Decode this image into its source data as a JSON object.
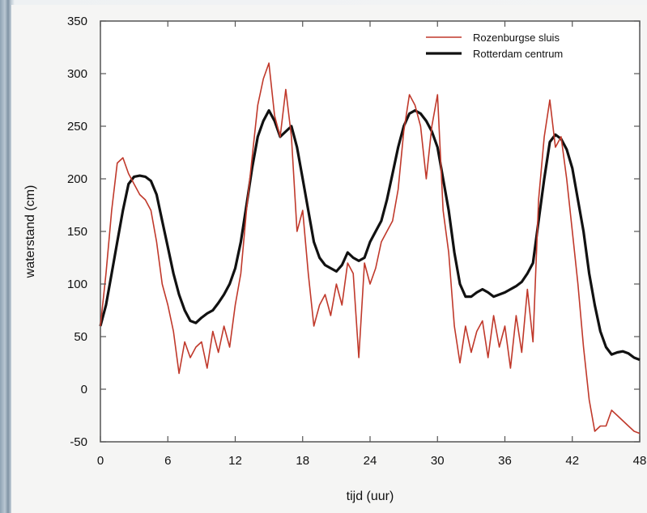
{
  "chart_data": {
    "type": "line",
    "title": "",
    "xlabel": "tijd (uur)",
    "ylabel": "waterstand (cm)",
    "xlim": [
      0,
      48
    ],
    "ylim": [
      -50,
      350
    ],
    "xticks": [
      0,
      6,
      12,
      18,
      24,
      30,
      36,
      42,
      48
    ],
    "yticks": [
      -50,
      0,
      50,
      100,
      150,
      200,
      250,
      300,
      350
    ],
    "grid": false,
    "legend_position": "top-right",
    "series": [
      {
        "name": "Rozenburgse sluis",
        "color": "#c0392b",
        "x": [
          0,
          0.5,
          1,
          1.5,
          2,
          2.5,
          3,
          3.5,
          4,
          4.5,
          5,
          5.5,
          6,
          6.5,
          7,
          7.5,
          8,
          8.5,
          9,
          9.5,
          10,
          10.5,
          11,
          11.5,
          12,
          12.5,
          13,
          13.5,
          14,
          14.5,
          15,
          15.5,
          16,
          16.5,
          17,
          17.5,
          18,
          18.5,
          19,
          19.5,
          20,
          20.5,
          21,
          21.5,
          22,
          22.5,
          23,
          23.5,
          24,
          24.5,
          25,
          25.5,
          26,
          26.5,
          27,
          27.5,
          28,
          28.5,
          29,
          29.5,
          30,
          30.5,
          31,
          31.5,
          32,
          32.5,
          33,
          33.5,
          34,
          34.5,
          35,
          35.5,
          36,
          36.5,
          37,
          37.5,
          38,
          38.5,
          39,
          39.5,
          40,
          40.5,
          41,
          41.5,
          42,
          42.5,
          43,
          43.5,
          44,
          44.5,
          45,
          45.5,
          46,
          46.5,
          47,
          47.5,
          48
        ],
        "values": [
          60,
          110,
          170,
          215,
          220,
          205,
          195,
          185,
          180,
          170,
          140,
          100,
          80,
          55,
          15,
          45,
          30,
          40,
          45,
          20,
          55,
          35,
          60,
          40,
          80,
          110,
          170,
          220,
          270,
          295,
          310,
          260,
          240,
          285,
          240,
          150,
          170,
          110,
          60,
          80,
          90,
          70,
          100,
          80,
          120,
          110,
          30,
          120,
          100,
          115,
          140,
          150,
          160,
          190,
          245,
          280,
          270,
          250,
          200,
          250,
          280,
          170,
          130,
          60,
          25,
          60,
          35,
          55,
          65,
          30,
          70,
          40,
          60,
          20,
          70,
          35,
          95,
          45,
          180,
          240,
          275,
          230,
          240,
          200,
          150,
          100,
          40,
          -10,
          -40,
          -35,
          -35,
          -20,
          -25,
          -30,
          -35,
          -40,
          -42
        ]
      },
      {
        "name": "Rotterdam centrum",
        "color": "#111111",
        "x": [
          0,
          0.5,
          1,
          1.5,
          2,
          2.5,
          3,
          3.5,
          4,
          4.5,
          5,
          5.5,
          6,
          6.5,
          7,
          7.5,
          8,
          8.5,
          9,
          9.5,
          10,
          10.5,
          11,
          11.5,
          12,
          12.5,
          13,
          13.5,
          14,
          14.5,
          15,
          15.5,
          16,
          16.5,
          17,
          17.5,
          18,
          18.5,
          19,
          19.5,
          20,
          20.5,
          21,
          21.5,
          22,
          22.5,
          23,
          23.5,
          24,
          24.5,
          25,
          25.5,
          26,
          26.5,
          27,
          27.5,
          28,
          28.5,
          29,
          29.5,
          30,
          30.5,
          31,
          31.5,
          32,
          32.5,
          33,
          33.5,
          34,
          34.5,
          35,
          35.5,
          36,
          36.5,
          37,
          37.5,
          38,
          38.5,
          39,
          39.5,
          40,
          40.5,
          41,
          41.5,
          42,
          42.5,
          43,
          43.5,
          44,
          44.5,
          45,
          45.5,
          46,
          46.5,
          47,
          47.5,
          48
        ],
        "values": [
          60,
          80,
          110,
          140,
          170,
          195,
          202,
          203,
          202,
          198,
          185,
          160,
          135,
          110,
          90,
          75,
          65,
          63,
          68,
          72,
          75,
          82,
          90,
          100,
          115,
          140,
          175,
          210,
          240,
          255,
          265,
          255,
          240,
          245,
          250,
          230,
          200,
          170,
          140,
          125,
          118,
          115,
          112,
          118,
          130,
          125,
          122,
          125,
          140,
          150,
          160,
          180,
          205,
          230,
          250,
          262,
          265,
          262,
          255,
          245,
          230,
          200,
          170,
          130,
          100,
          88,
          88,
          92,
          95,
          92,
          88,
          90,
          92,
          95,
          98,
          102,
          110,
          120,
          160,
          200,
          235,
          242,
          238,
          228,
          210,
          180,
          150,
          110,
          80,
          55,
          40,
          33,
          35,
          36,
          34,
          30,
          28
        ]
      }
    ]
  }
}
